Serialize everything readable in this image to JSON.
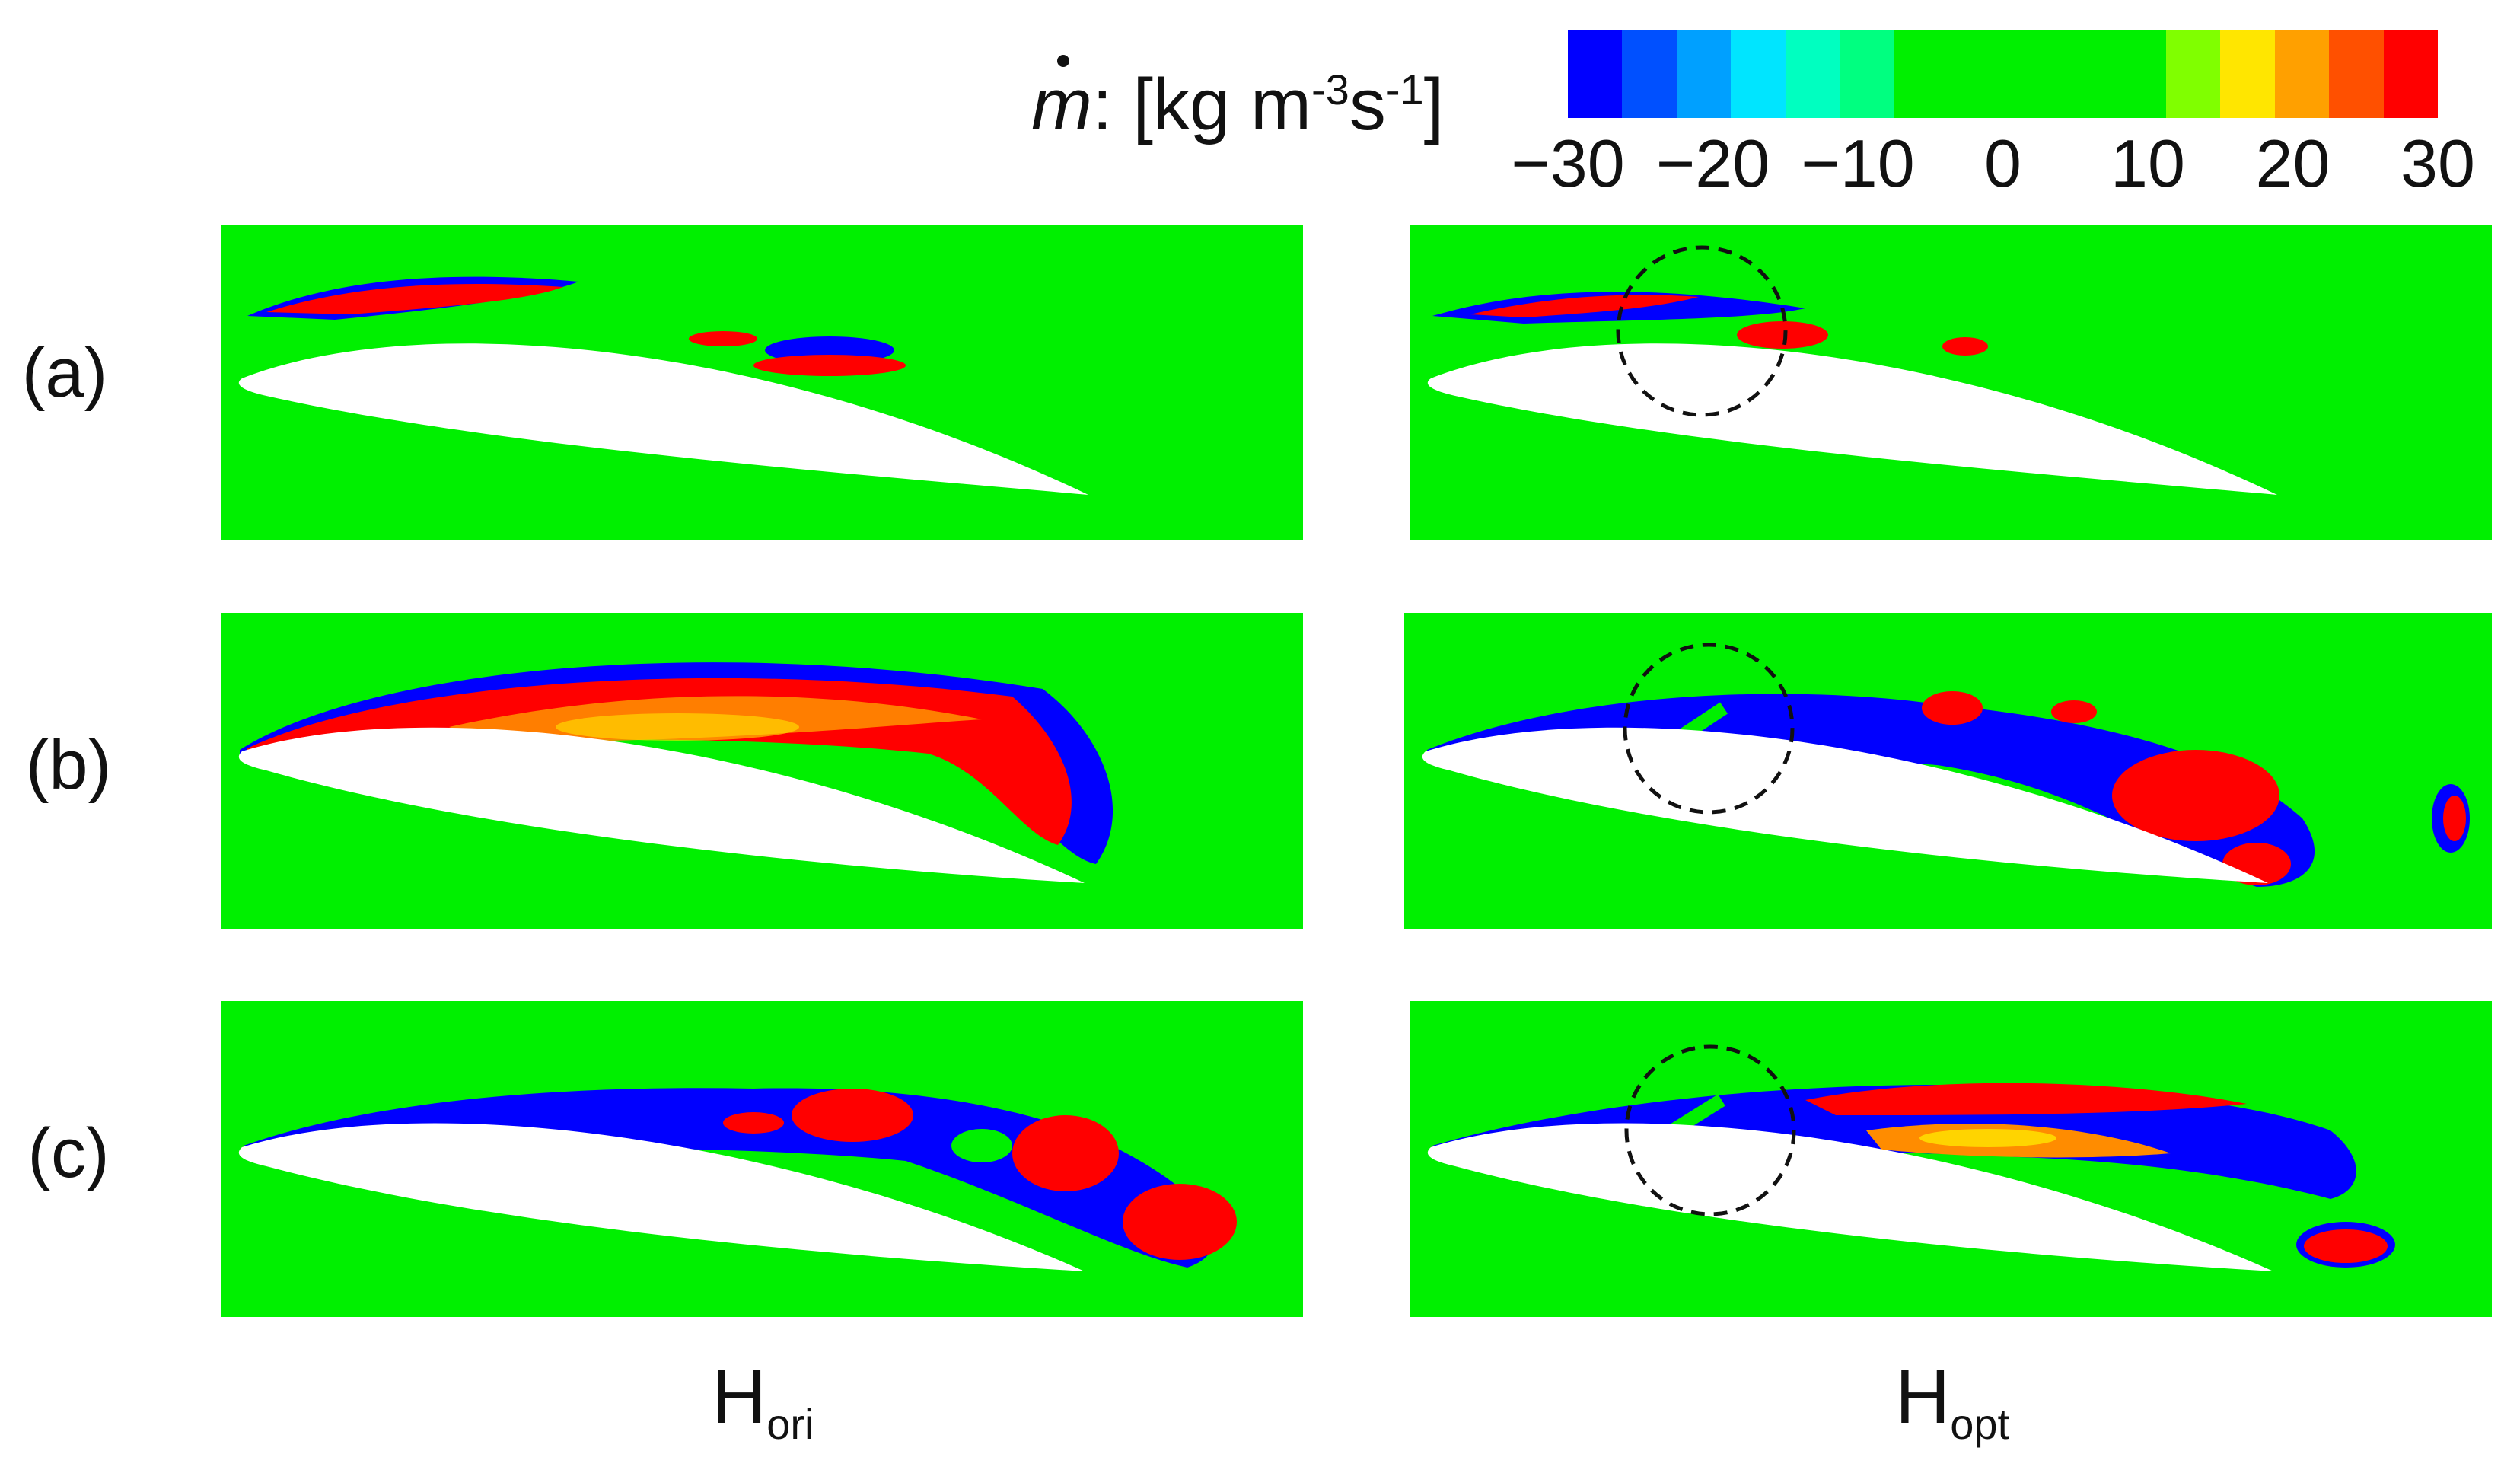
{
  "colorbar": {
    "symbol": "m",
    "label": ": [kg m",
    "exp1": "-3",
    "mid": "s",
    "exp2": "-1",
    "close": "]",
    "ticks": [
      "−30",
      "−20",
      "−10",
      "0",
      "10",
      "20",
      "30"
    ],
    "colors": [
      "#0000ff",
      "#0050ff",
      "#00a0ff",
      "#00e5ff",
      "#00ffc0",
      "#00ff80",
      "#00f000",
      "#00f000",
      "#00f000",
      "#00f000",
      "#00f000",
      "#80ff00",
      "#ffe600",
      "#ffa000",
      "#ff5000",
      "#ff0000"
    ]
  },
  "rows": [
    "(a)",
    "(b)",
    "(c)"
  ],
  "columns": [
    {
      "base": "H",
      "sub": "ori"
    },
    {
      "base": "H",
      "sub": "opt"
    }
  ],
  "palette": {
    "background": "#00f000",
    "positive": "#ff0000",
    "negative": "#0000ff",
    "orange": "#ff8c00",
    "yellow": "#ffe600",
    "blade": "#ffffff",
    "circle": "#111111"
  }
}
